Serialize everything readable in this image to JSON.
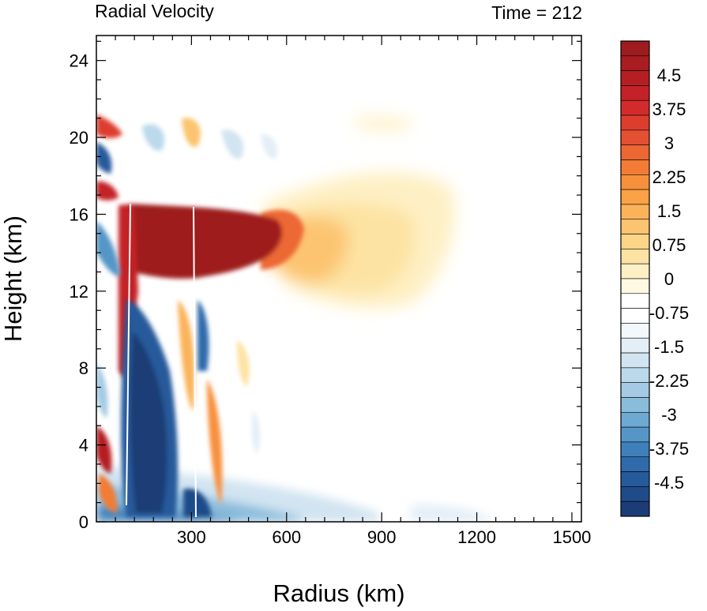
{
  "chart_data": {
    "type": "heatmap",
    "title_left": "Radial Velocity",
    "title_right": "Time = 212",
    "xlabel": "Radius (km)",
    "ylabel": "Height (km)",
    "xlim": [
      0,
      1530
    ],
    "ylim": [
      0,
      25.3
    ],
    "x_ticks": [
      300,
      600,
      900,
      1200,
      1500
    ],
    "x_tick_labels": [
      "300",
      "600",
      "900",
      "1200",
      "1500"
    ],
    "y_ticks": [
      0,
      4,
      8,
      12,
      16,
      20,
      24
    ],
    "y_tick_labels": [
      "0",
      "4",
      "8",
      "12",
      "16",
      "20",
      "24"
    ],
    "colorbar": {
      "levels_min": -5.25,
      "levels_max": 5.25,
      "level_step": 0.375,
      "tick_values": [
        4.5,
        3.75,
        3,
        2.25,
        1.5,
        0.75,
        0,
        -0.75,
        -1.5,
        -2.25,
        -3,
        -3.75,
        -4.5
      ],
      "tick_labels": [
        "4.5",
        "3.75",
        "3",
        "2.25",
        "1.5",
        "0.75",
        "0",
        "-0.75",
        "-1.5",
        "-2.25",
        "-3",
        "-3.75",
        "-4.5"
      ],
      "colors_top_to_bottom": [
        "#9e1b1f",
        "#a91c21",
        "#b51f24",
        "#c32228",
        "#d32b2c",
        "#dd3d2d",
        "#e45132",
        "#ec6734",
        "#f27c35",
        "#f7903c",
        "#faa246",
        "#fbb35a",
        "#fcc470",
        "#fdd587",
        "#fde3a3",
        "#fef0c5",
        "#fff8e3",
        "#ffffff",
        "#ffffff",
        "#f3f8fc",
        "#e4eef7",
        "#d1e4f1",
        "#bcd9eb",
        "#a5cbe4",
        "#8abcdc",
        "#6ea9d2",
        "#5596c7",
        "#3f80ba",
        "#2f6bab",
        "#255a9b",
        "#1f4b89",
        "#1c3c75"
      ]
    },
    "features": [
      {
        "sign": "positive",
        "x": [
          95,
          560
        ],
        "y": [
          12,
          16.5
        ],
        "peak": "> 5.25"
      },
      {
        "sign": "negative",
        "x": [
          100,
          300
        ],
        "y": [
          0,
          12
        ],
        "peak": "< -5.25"
      },
      {
        "sign": "positive",
        "x": [
          500,
          1100
        ],
        "y": [
          9,
          18
        ],
        "peak": 2.5
      },
      {
        "sign": "negative",
        "x": [
          0,
          900
        ],
        "y": [
          0,
          2
        ],
        "peak": -2.5
      }
    ]
  }
}
